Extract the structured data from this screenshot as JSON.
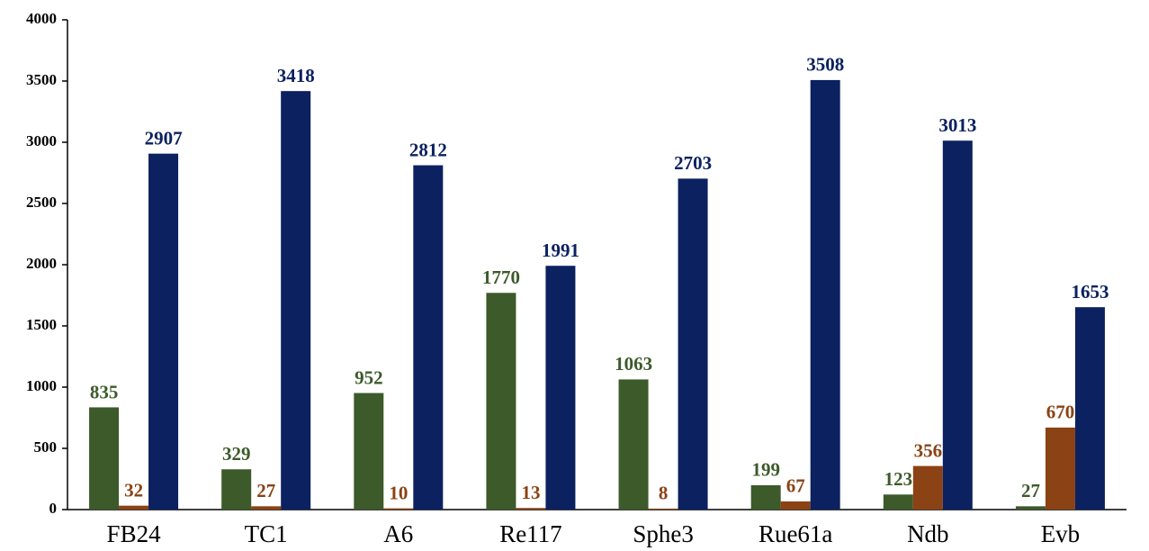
{
  "chart_data": {
    "type": "bar",
    "categories": [
      "FB24",
      "TC1",
      "A6",
      "Re117",
      "Sphe3",
      "Rue61a",
      "Ndb",
      "Evb"
    ],
    "series": [
      {
        "color": "#3d5a2a",
        "values": [
          835,
          329,
          952,
          1770,
          1063,
          199,
          123,
          27
        ]
      },
      {
        "color": "#8b4214",
        "values": [
          32,
          27,
          10,
          13,
          8,
          67,
          356,
          670
        ]
      },
      {
        "color": "#0b2160",
        "values": [
          2907,
          3418,
          2812,
          1991,
          2703,
          3508,
          3013,
          1653
        ]
      }
    ],
    "ylim": [
      0,
      4000
    ],
    "yticks": [
      0,
      500,
      1000,
      1500,
      2000,
      2500,
      3000,
      3500,
      4000
    ],
    "grid": false
  }
}
